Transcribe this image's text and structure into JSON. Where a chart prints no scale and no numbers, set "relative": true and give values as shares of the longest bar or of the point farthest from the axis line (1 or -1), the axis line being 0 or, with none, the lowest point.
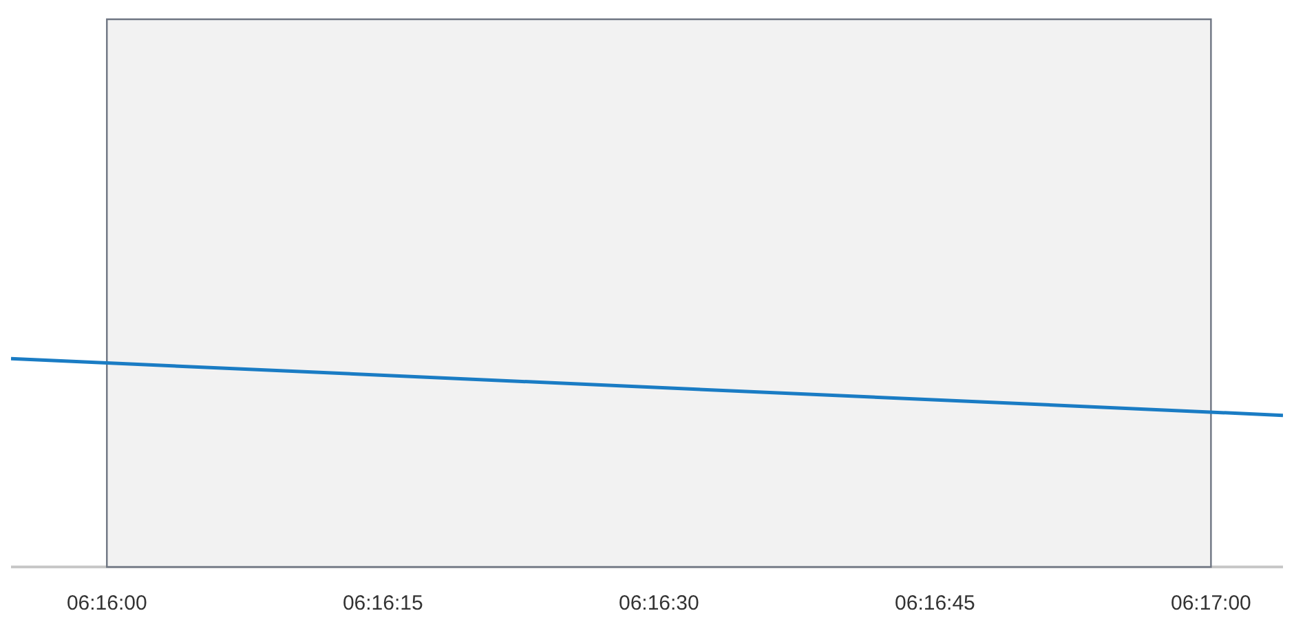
{
  "chart_data": {
    "type": "line",
    "relative": true,
    "x": [
      6.26522,
      6.28442
    ],
    "series": [
      {
        "color": "#1a7cc4",
        "values": [
          1,
          0.728
        ]
      }
    ],
    "xlim": [
      6.26522,
      6.28442
    ],
    "xticks": [
      {
        "value": 6.266667,
        "label": "06:16:00"
      },
      {
        "value": 6.270833,
        "label": "06:16:15"
      },
      {
        "value": 6.275,
        "label": "06:16:30"
      },
      {
        "value": 6.279167,
        "label": "06:16:45"
      },
      {
        "value": 6.283333,
        "label": "06:17:00"
      }
    ],
    "bands": [
      {
        "axis": "x",
        "from": 6.266667,
        "to": 6.283333,
        "color": "#f2f2f2"
      }
    ],
    "legend": false,
    "marker": "none",
    "line_style": "solid"
  }
}
